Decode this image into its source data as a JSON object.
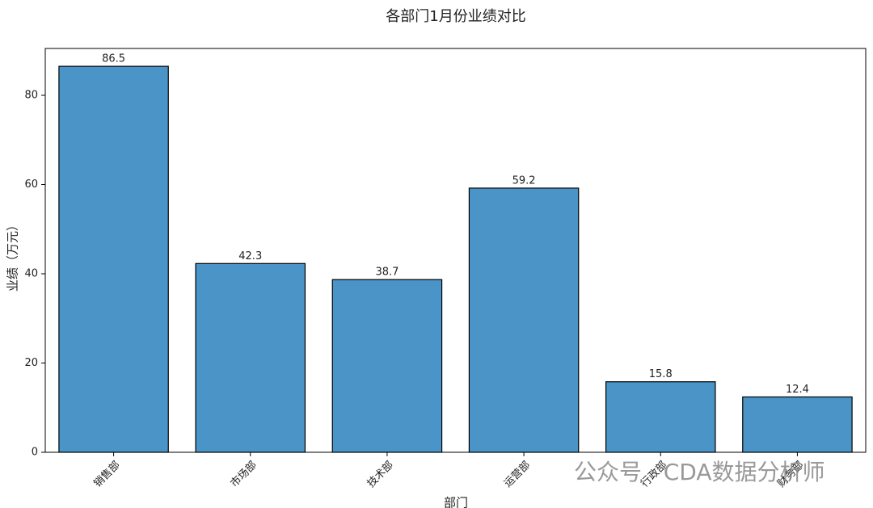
{
  "chart_data": {
    "type": "bar",
    "title": "各部门1月份业绩对比",
    "xlabel": "部门",
    "ylabel": "业绩（万元）",
    "categories": [
      "销售部",
      "市场部",
      "技术部",
      "运营部",
      "行政部",
      "财务部"
    ],
    "values": [
      86.5,
      42.3,
      38.7,
      59.2,
      15.8,
      12.4
    ],
    "color": "#4a94c8",
    "edgecolor": "#000000",
    "ylim": [
      0,
      90.5
    ],
    "yticks": [
      0,
      20,
      40,
      60,
      80
    ],
    "grid": false,
    "watermark": "公众号 · CDA数据分析师"
  }
}
